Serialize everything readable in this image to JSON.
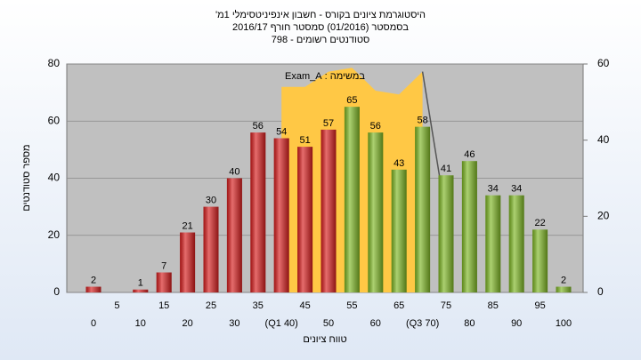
{
  "chart_data": {
    "type": "bar",
    "title": "היסטוגרמת ציונים בקורס - חשבון אינפיניטסימלי 1מ'",
    "subtitle": "בסמסטר (01/2016) סמסטר חורף 2016/17",
    "subtitle2": "סטודנטים רשומים - 798",
    "y_label": "מספר סטודנטים",
    "x_label": "טווח ציונים",
    "annotation": "במשימה : Exam_A",
    "categories": [
      "0",
      "5",
      "10",
      "15",
      "20",
      "25",
      "30",
      "35",
      "(Q1 40)",
      "45",
      "50",
      "55",
      "60",
      "65",
      "(Q3 70)",
      "75",
      "80",
      "85",
      "90",
      "95",
      "100"
    ],
    "values": [
      2,
      null,
      1,
      7,
      21,
      30,
      40,
      56,
      54,
      51,
      57,
      65,
      56,
      43,
      58,
      41,
      46,
      34,
      34,
      22,
      2
    ],
    "colors": [
      "#d81e1e",
      "#d81e1e",
      "#d81e1e",
      "#d81e1e",
      "#d81e1e",
      "#d81e1e",
      "#d81e1e",
      "#d81e1e",
      "#d81e1e",
      "#d81e1e",
      "#d81e1e",
      "#7fb825",
      "#7fb825",
      "#7fb825",
      "#7fb825",
      "#7fb825",
      "#7fb825",
      "#7fb825",
      "#7fb825",
      "#7fb825",
      "#7fb825"
    ],
    "series": [
      {
        "type": "area",
        "axis": "y2",
        "color": "#ffc845",
        "values": [
          null,
          null,
          null,
          null,
          null,
          null,
          null,
          null,
          54,
          54,
          58,
          59,
          53,
          52,
          58,
          null,
          null,
          null,
          null,
          null,
          null
        ]
      },
      {
        "type": "line",
        "axis": "y2",
        "color": "#555555",
        "values": [
          null,
          null,
          null,
          null,
          null,
          null,
          null,
          null,
          null,
          null,
          null,
          null,
          null,
          null,
          58,
          20,
          null,
          null,
          null,
          null,
          null
        ]
      }
    ],
    "ylim": [
      0,
      80
    ],
    "yticks": [
      0,
      20,
      40,
      60,
      80
    ],
    "y2lim": [
      0,
      60
    ],
    "y2ticks": [
      0,
      20,
      40,
      60
    ],
    "grid": true
  }
}
